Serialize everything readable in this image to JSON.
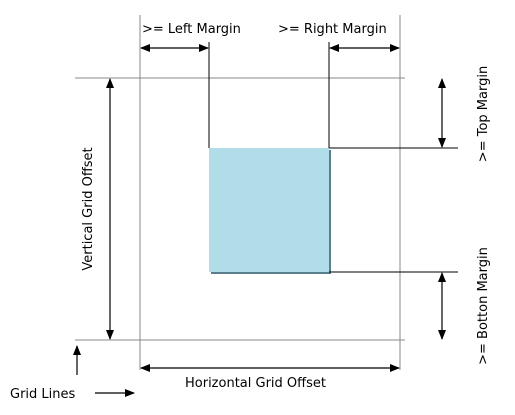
{
  "labels": {
    "left_margin": ">= Left Margin",
    "right_margin": ">= Right Margin",
    "top_margin": ">= Top Margin",
    "bottom_margin": ">= Botton Margin",
    "vertical_grid_offset": "Vertical Grid Offset",
    "horizontal_grid_offset": "Horizontal Grid Offset",
    "grid_lines": "Grid Lines"
  },
  "colors": {
    "box_fill": "#b0dde8",
    "box_shadow": "#5a7f8c",
    "grid_line": "#888888",
    "dimension_line": "#000000"
  }
}
